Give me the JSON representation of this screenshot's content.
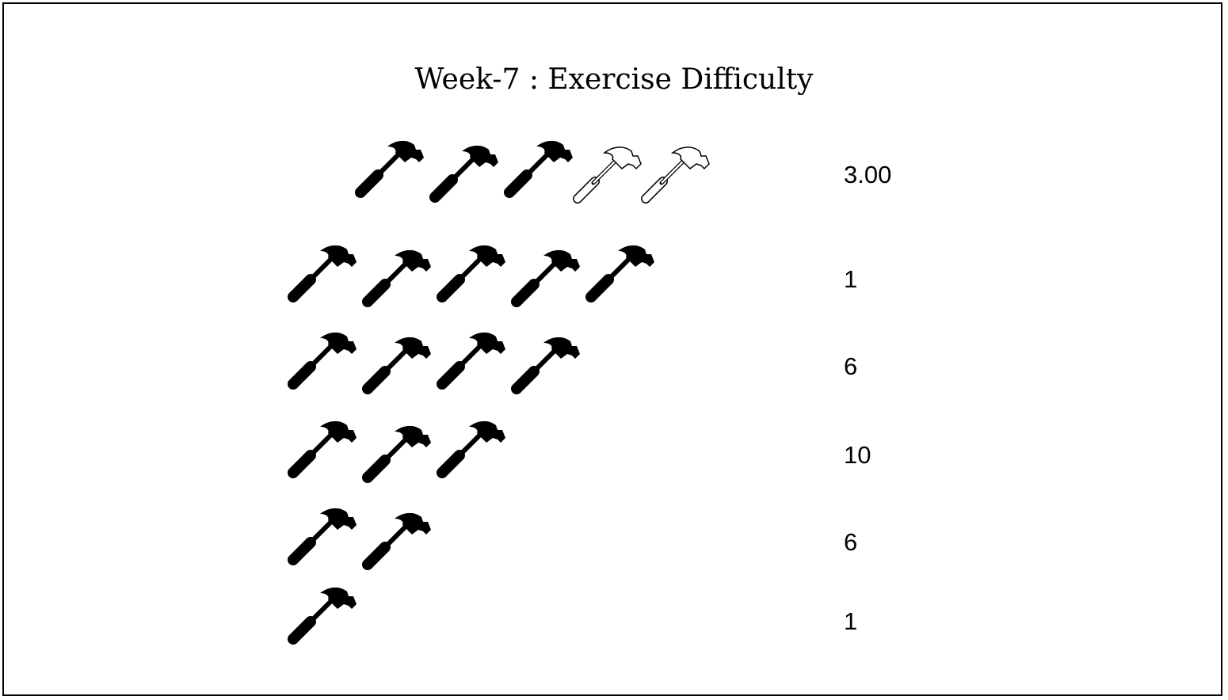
{
  "chart_data": {
    "type": "pictograph",
    "title": "Week-7 : Exercise Difficulty",
    "icon": "hammer-icon",
    "rows": [
      {
        "filled_icons": 3,
        "outline_icons": 2,
        "label": "3.00"
      },
      {
        "filled_icons": 5,
        "outline_icons": 0,
        "label": "1"
      },
      {
        "filled_icons": 4,
        "outline_icons": 0,
        "label": "6"
      },
      {
        "filled_icons": 3,
        "outline_icons": 0,
        "label": "10"
      },
      {
        "filled_icons": 2,
        "outline_icons": 0,
        "label": "6"
      },
      {
        "filled_icons": 1,
        "outline_icons": 0,
        "label": "1"
      }
    ],
    "colors": {
      "filled": "#000000",
      "outline_stroke": "#000000",
      "outline_fill": "#ffffff"
    }
  }
}
